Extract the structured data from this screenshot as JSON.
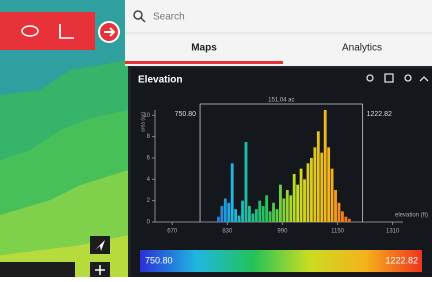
{
  "search_placeholder": "Search",
  "tabs": [
    "Maps",
    "Analytics"
  ],
  "panel_title": "Elevation",
  "chart_data": {
    "type": "histogram",
    "ylabel": "area (ac)",
    "xlabel": "elevation (ft)",
    "range_low_label": "750.80",
    "range_high_label": "1222.82",
    "selection": [
      750.8,
      1222.82
    ],
    "selection_label": "151.04 ac",
    "bins": [
      800,
      810,
      820,
      830,
      840,
      850,
      860,
      870,
      880,
      890,
      900,
      910,
      920,
      930,
      940,
      950,
      960,
      970,
      980,
      990,
      1000,
      1010,
      1020,
      1030,
      1040,
      1050,
      1060,
      1070,
      1080,
      1090,
      1100,
      1110,
      1120,
      1130,
      1140,
      1150,
      1160,
      1170,
      1180,
      1190
    ],
    "values": [
      0.5,
      1.5,
      2.2,
      1.8,
      5.5,
      1.2,
      0.6,
      2,
      7.5,
      1.5,
      0.8,
      1.2,
      2,
      1.5,
      2.5,
      1,
      1.8,
      1.2,
      3.5,
      2.2,
      3,
      2.5,
      4.5,
      3.5,
      5,
      4,
      5.5,
      6,
      7,
      8.5,
      6.5,
      10.5,
      7,
      5,
      3,
      1.8,
      1,
      0.5,
      0.3
    ],
    "xlim": [
      620,
      1340
    ],
    "ylim": [
      0,
      10.5
    ],
    "xticks": [
      670,
      830,
      990,
      1150,
      1310
    ],
    "yticks": [
      0,
      2,
      4,
      6,
      8,
      10
    ],
    "colormap": [
      "#2b2fd6",
      "#1fb7e0",
      "#22c25a",
      "#c9dd22",
      "#f5b21c",
      "#f0331f"
    ]
  }
}
